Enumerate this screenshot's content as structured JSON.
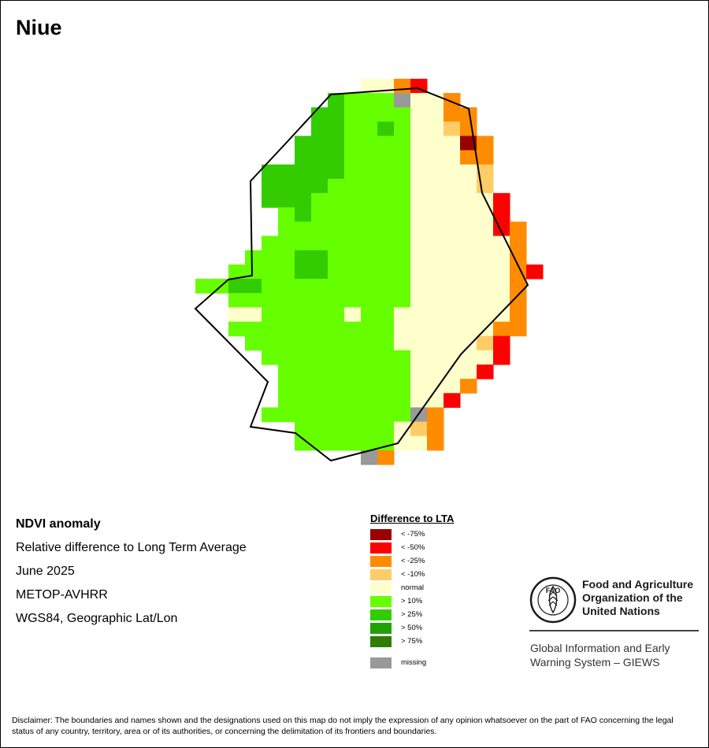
{
  "title": "Niue",
  "info": {
    "line1": "NDVI anomaly",
    "line2": "Relative difference to Long Term Average",
    "line3": "June 2025",
    "line4": "METOP-AVHRR",
    "line5": "WGS84, Geographic Lat/Lon"
  },
  "legend": {
    "title": "Difference to LTA",
    "items": [
      {
        "label": "< -75%",
        "color": "#9b0000"
      },
      {
        "label": "< -50%",
        "color": "#ff0000"
      },
      {
        "label": "< -25%",
        "color": "#ff8c00"
      },
      {
        "label": "< -10%",
        "color": "#ffcc66"
      },
      {
        "label": "normal",
        "color": "#ffffcc"
      },
      {
        "label": "> 10%",
        "color": "#66ff00"
      },
      {
        "label": "> 25%",
        "color": "#33cc00"
      },
      {
        "label": "> 50%",
        "color": "#22a000"
      },
      {
        "label": "> 75%",
        "color": "#2e7d00"
      },
      {
        "label": "missing",
        "color": "#999999"
      }
    ]
  },
  "fao": {
    "name_line1": "Food and Agriculture",
    "name_line2": "Organization of the",
    "name_line3": "United Nations",
    "logo_text": "FAO",
    "giews_line1": "Global Information and Early",
    "giews_line2": "Warning System – GIEWS"
  },
  "disclaimer": "Disclaimer: The boundaries and names shown and the designations used on this map do not imply the expression of any opinion whatsoever on the part of FAO concerning the legal status of any country, territory, area or of its authorities, or concerning the delimitation of its frontiers and boundaries."
}
